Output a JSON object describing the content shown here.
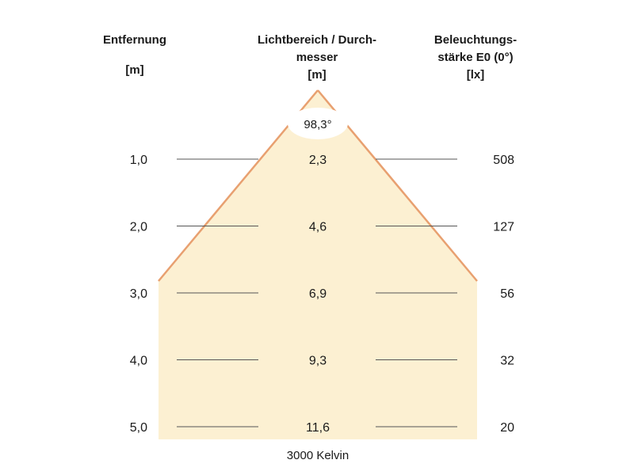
{
  "headers": {
    "distance": {
      "title": "Entfernung",
      "unit": "[m]"
    },
    "diameter": {
      "title_line1": "Lichtbereich / Durch-",
      "title_line2": "messer",
      "unit": "[m]"
    },
    "illuminance": {
      "title_line1": "Beleuchtungs-",
      "title_line2": "stärke E0 (0°)",
      "unit": "[lx]"
    }
  },
  "beam_angle": "98,3°",
  "rows": [
    {
      "distance": "1,0",
      "diameter": "2,3",
      "illuminance": "508"
    },
    {
      "distance": "2,0",
      "diameter": "4,6",
      "illuminance": "127"
    },
    {
      "distance": "3,0",
      "diameter": "6,9",
      "illuminance": "56"
    },
    {
      "distance": "4,0",
      "diameter": "9,3",
      "illuminance": "32"
    },
    {
      "distance": "5,0",
      "diameter": "11,6",
      "illuminance": "20"
    }
  ],
  "color_temperature": "3000 Kelvin",
  "colors": {
    "beam_fill": "#fcf0d2",
    "beam_edge": "#e8a070",
    "guide_line": "#555555"
  }
}
